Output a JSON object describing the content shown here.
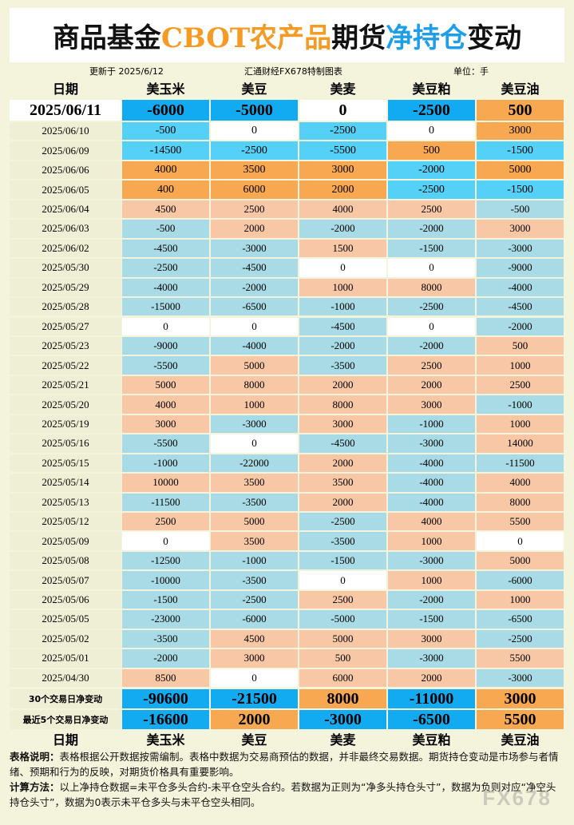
{
  "header": {
    "title_parts": [
      "商品基金",
      "CBOT农产品",
      "期货",
      "净持仓",
      "变动"
    ],
    "updated": "更新于 2025/6/12",
    "source": "汇通财经FX678特制图表",
    "unit": "单位：手"
  },
  "table": {
    "columns": [
      "日期",
      "美玉米",
      "美豆",
      "美麦",
      "美豆粕",
      "美豆油"
    ],
    "rows": [
      {
        "date": "2025/06/11",
        "values": [
          -6000,
          -5000,
          0,
          -2500,
          500
        ]
      },
      {
        "date": "2025/06/10",
        "values": [
          -500,
          0,
          -2500,
          0,
          3000
        ]
      },
      {
        "date": "2025/06/09",
        "values": [
          -14500,
          -2500,
          -5500,
          500,
          -1500
        ]
      },
      {
        "date": "2025/06/06",
        "values": [
          4000,
          3500,
          3000,
          -2000,
          5000
        ]
      },
      {
        "date": "2025/06/05",
        "values": [
          400,
          6000,
          2000,
          -2500,
          -1500
        ]
      },
      {
        "date": "2025/06/04",
        "values": [
          4500,
          2500,
          4000,
          2500,
          -500
        ]
      },
      {
        "date": "2025/06/03",
        "values": [
          -500,
          2000,
          -2000,
          -2000,
          3000
        ]
      },
      {
        "date": "2025/06/02",
        "values": [
          -4500,
          -3000,
          1500,
          -1500,
          -3000
        ]
      },
      {
        "date": "2025/05/30",
        "values": [
          -2500,
          -4500,
          0,
          0,
          -9000
        ]
      },
      {
        "date": "2025/05/29",
        "values": [
          -4000,
          -2000,
          1000,
          8000,
          -4000
        ]
      },
      {
        "date": "2025/05/28",
        "values": [
          -15000,
          -6500,
          -1000,
          -2500,
          -4500
        ]
      },
      {
        "date": "2025/05/27",
        "values": [
          0,
          0,
          -4500,
          0,
          -2000
        ]
      },
      {
        "date": "2025/05/23",
        "values": [
          -9000,
          -4000,
          -2000,
          -2000,
          500
        ]
      },
      {
        "date": "2025/05/22",
        "values": [
          -5500,
          5000,
          -3500,
          2500,
          1000
        ]
      },
      {
        "date": "2025/05/21",
        "values": [
          5000,
          8000,
          2000,
          2000,
          2500
        ]
      },
      {
        "date": "2025/05/20",
        "values": [
          4000,
          1000,
          8000,
          3000,
          -1000
        ]
      },
      {
        "date": "2025/05/19",
        "values": [
          3000,
          -3000,
          3000,
          -1000,
          1000
        ]
      },
      {
        "date": "2025/05/16",
        "values": [
          -5500,
          0,
          -4500,
          -3000,
          14000
        ]
      },
      {
        "date": "2025/05/15",
        "values": [
          -1000,
          -22000,
          2000,
          -4000,
          -11500
        ]
      },
      {
        "date": "2025/05/14",
        "values": [
          10000,
          3500,
          3500,
          -4000,
          4000
        ]
      },
      {
        "date": "2025/05/13",
        "values": [
          -11500,
          -3500,
          2000,
          -4000,
          8000
        ]
      },
      {
        "date": "2025/05/12",
        "values": [
          2500,
          5000,
          -2500,
          4000,
          5500
        ]
      },
      {
        "date": "2025/05/09",
        "values": [
          0,
          3500,
          -3500,
          1000,
          0
        ]
      },
      {
        "date": "2025/05/08",
        "values": [
          -12500,
          -1000,
          -1500,
          -3000,
          5000
        ]
      },
      {
        "date": "2025/05/07",
        "values": [
          -10000,
          -3500,
          0,
          1000,
          -6000
        ]
      },
      {
        "date": "2025/05/06",
        "values": [
          -1500,
          -2500,
          2500,
          -2000,
          1000
        ]
      },
      {
        "date": "2025/05/05",
        "values": [
          -23000,
          -6000,
          -5000,
          -1500,
          -6500
        ]
      },
      {
        "date": "2025/05/02",
        "values": [
          -3500,
          4500,
          5000,
          3000,
          -2500
        ]
      },
      {
        "date": "2025/05/01",
        "values": [
          -2000,
          3000,
          500,
          -3000,
          5500
        ]
      },
      {
        "date": "2025/04/30",
        "values": [
          8500,
          0,
          6000,
          2000,
          -3000
        ]
      }
    ],
    "summary": [
      {
        "label": "30个交易日净变动",
        "values": [
          -90600,
          -21500,
          8000,
          -11000,
          3000
        ]
      },
      {
        "label": "最近5个交易日净变动",
        "values": [
          -16600,
          2000,
          -3000,
          -6500,
          5500
        ]
      }
    ]
  },
  "footer": {
    "note_label": "表格说明：",
    "note": "表格根据公开数据按需编制。表格中数据为交易商预估的数据，并非最终交易数据。期货持仓变动是市场参与者情绪、预期和行为的反映，对期货价格具有重要影响。",
    "method_label": "计算方法：",
    "method": "以上净持仓数据=未平仓多头合约-未平仓空头合约。若数据为正则为“净多头持仓头寸”，数据为负则对应“净空头持仓头寸”，数据为0表示未平仓多头与未平仓空头相同。"
  },
  "watermark": "FX678"
}
